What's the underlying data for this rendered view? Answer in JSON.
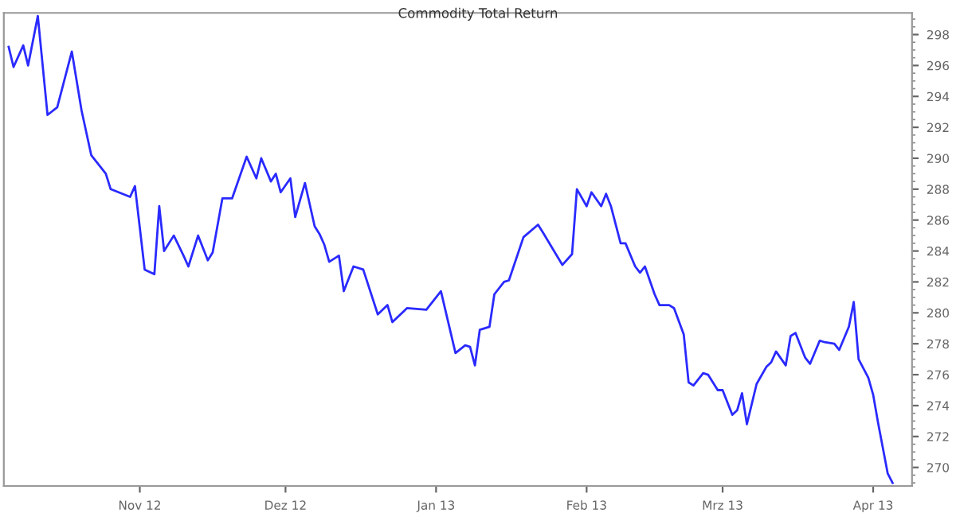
{
  "chart_data": {
    "type": "line",
    "title": "Commodity Total Return",
    "x": [
      "2012-10-05",
      "2012-10-06",
      "2012-10-08",
      "2012-10-09",
      "2012-10-11",
      "2012-10-13",
      "2012-10-15",
      "2012-10-18",
      "2012-10-20",
      "2012-10-22",
      "2012-10-25",
      "2012-10-26",
      "2012-10-30",
      "2012-10-31",
      "2012-11-02",
      "2012-11-04",
      "2012-11-05",
      "2012-11-06",
      "2012-11-08",
      "2012-11-10",
      "2012-11-11",
      "2012-11-13",
      "2012-11-15",
      "2012-11-16",
      "2012-11-18",
      "2012-11-20",
      "2012-11-23",
      "2012-11-25",
      "2012-11-26",
      "2012-11-28",
      "2012-11-29",
      "2012-11-30",
      "2012-12-02",
      "2012-12-03",
      "2012-12-05",
      "2012-12-07",
      "2012-12-08",
      "2012-12-09",
      "2012-12-10",
      "2012-12-12",
      "2012-12-13",
      "2012-12-15",
      "2012-12-17",
      "2012-12-20",
      "2012-12-22",
      "2012-12-23",
      "2012-12-26",
      "2012-12-30",
      "2013-01-02",
      "2013-01-05",
      "2013-01-07",
      "2013-01-08",
      "2013-01-09",
      "2013-01-10",
      "2013-01-12",
      "2013-01-13",
      "2013-01-15",
      "2013-01-16",
      "2013-01-19",
      "2013-01-22",
      "2013-01-23",
      "2013-01-27",
      "2013-01-29",
      "2013-01-30",
      "2013-02-01",
      "2013-02-02",
      "2013-02-04",
      "2013-02-05",
      "2013-02-06",
      "2013-02-08",
      "2013-02-09",
      "2013-02-11",
      "2013-02-12",
      "2013-02-13",
      "2013-02-15",
      "2013-02-16",
      "2013-02-18",
      "2013-02-19",
      "2013-02-21",
      "2013-02-22",
      "2013-02-23",
      "2013-02-25",
      "2013-02-26",
      "2013-02-28",
      "2013-03-01",
      "2013-03-03",
      "2013-03-04",
      "2013-03-05",
      "2013-03-06",
      "2013-03-08",
      "2013-03-10",
      "2013-03-11",
      "2013-03-12",
      "2013-03-14",
      "2013-03-15",
      "2013-03-16",
      "2013-03-18",
      "2013-03-19",
      "2013-03-21",
      "2013-03-22",
      "2013-03-24",
      "2013-03-25",
      "2013-03-27",
      "2013-03-28",
      "2013-03-29",
      "2013-03-31",
      "2013-04-01",
      "2013-04-02",
      "2013-04-04",
      "2013-04-05"
    ],
    "series": [
      {
        "color": "#2a2aff",
        "values": [
          297.2,
          295.9,
          297.3,
          296.0,
          299.2,
          292.8,
          293.3,
          296.9,
          293.1,
          290.2,
          289.0,
          288.0,
          287.5,
          288.2,
          282.8,
          282.5,
          286.9,
          284.0,
          285.0,
          283.7,
          283.0,
          285.0,
          283.4,
          283.9,
          287.4,
          287.4,
          290.1,
          288.7,
          290.0,
          288.5,
          289.0,
          287.8,
          288.7,
          286.2,
          288.4,
          285.6,
          285.1,
          284.4,
          283.3,
          283.7,
          281.4,
          283.0,
          282.8,
          279.9,
          280.5,
          279.4,
          280.3,
          280.2,
          281.4,
          277.4,
          277.9,
          277.8,
          276.6,
          278.9,
          279.1,
          281.2,
          282.0,
          282.1,
          284.9,
          285.7,
          285.2,
          283.1,
          283.8,
          288.0,
          286.9,
          287.8,
          286.9,
          287.7,
          286.9,
          284.5,
          284.5,
          283.0,
          282.6,
          283.0,
          281.2,
          280.5,
          280.5,
          280.3,
          278.6,
          275.5,
          275.3,
          276.1,
          276.0,
          275.0,
          275.0,
          273.4,
          273.7,
          274.8,
          272.8,
          275.4,
          276.5,
          276.8,
          277.5,
          276.6,
          278.5,
          278.7,
          277.1,
          276.7,
          278.2,
          278.1,
          278.0,
          277.6,
          279.1,
          280.7,
          277.0,
          275.8,
          274.7,
          272.9,
          269.6,
          269.0
        ]
      }
    ],
    "xlim": [
      "2012-10-04",
      "2013-04-09"
    ],
    "xticks": [
      {
        "value": "2012-11-01",
        "label": "Nov 12"
      },
      {
        "value": "2012-12-01",
        "label": "Dez 12"
      },
      {
        "value": "2013-01-01",
        "label": "Jan 13"
      },
      {
        "value": "2013-02-01",
        "label": "Feb 13"
      },
      {
        "value": "2013-03-01",
        "label": "Mrz 13"
      },
      {
        "value": "2013-04-01",
        "label": "Apr 13"
      }
    ],
    "ylim": [
      268.8,
      299.4
    ],
    "yticks": [
      270,
      272,
      274,
      276,
      278,
      280,
      282,
      284,
      286,
      288,
      290,
      292,
      294,
      296,
      298
    ],
    "grid": false,
    "legend": false,
    "marker": "none",
    "line_style": "solid"
  }
}
